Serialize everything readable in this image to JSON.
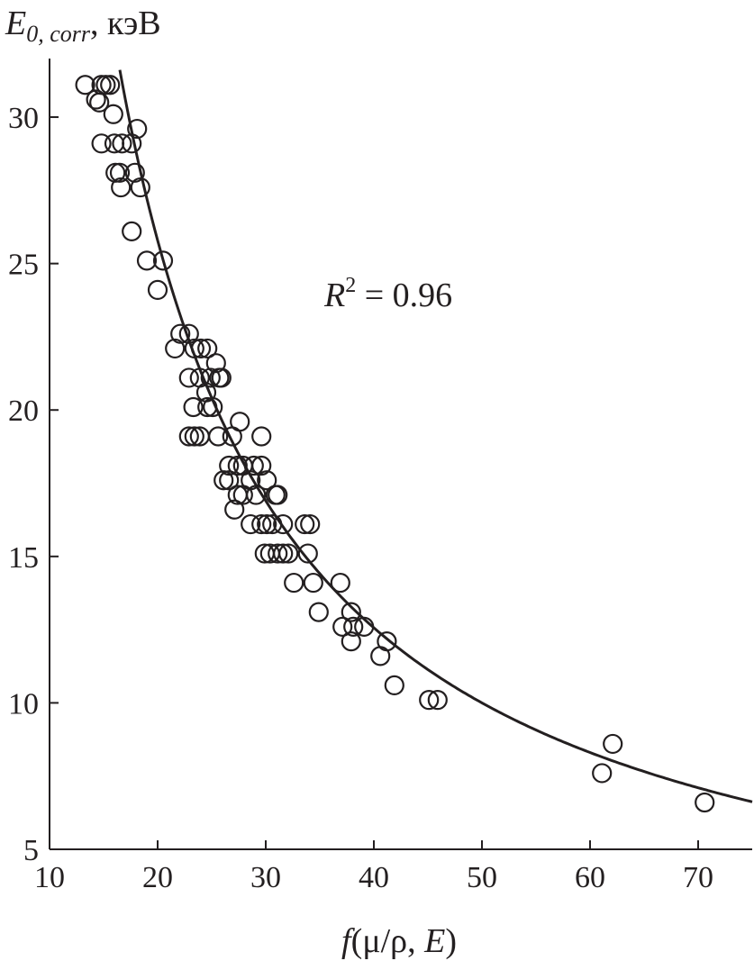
{
  "chart_data": {
    "type": "scatter",
    "ylabel": {
      "main": "E",
      "sub": "0, corr",
      "unit": ", кэВ"
    },
    "xlabel": {
      "f": "f",
      "args": "(μ/ρ, ",
      "E": "E",
      "close": ")"
    },
    "annotation": {
      "R": "R",
      "sup": "2",
      "text": " = 0.96"
    },
    "xlim": [
      10,
      75
    ],
    "ylim": [
      5,
      32
    ],
    "xticks": [
      10,
      20,
      30,
      40,
      50,
      60,
      70
    ],
    "yticks": [
      5,
      10,
      15,
      20,
      25,
      30
    ],
    "fit_curve": {
      "a": 490,
      "b": 1
    },
    "points": [
      [
        13.3,
        31.1
      ],
      [
        14.3,
        30.6
      ],
      [
        14.8,
        31.1
      ],
      [
        15.2,
        31.1
      ],
      [
        15.6,
        31.1
      ],
      [
        14.6,
        30.5
      ],
      [
        15.9,
        30.1
      ],
      [
        14.8,
        29.1
      ],
      [
        16.0,
        29.1
      ],
      [
        16.7,
        29.1
      ],
      [
        17.6,
        29.1
      ],
      [
        18.1,
        29.6
      ],
      [
        16.1,
        28.1
      ],
      [
        16.5,
        28.1
      ],
      [
        17.9,
        28.1
      ],
      [
        16.6,
        27.6
      ],
      [
        18.4,
        27.6
      ],
      [
        17.6,
        26.1
      ],
      [
        19.0,
        25.1
      ],
      [
        20.5,
        25.1
      ],
      [
        20.0,
        24.1
      ],
      [
        21.6,
        22.1
      ],
      [
        22.1,
        22.6
      ],
      [
        22.9,
        22.6
      ],
      [
        23.4,
        22.1
      ],
      [
        24.0,
        22.1
      ],
      [
        24.6,
        22.1
      ],
      [
        23.9,
        21.1
      ],
      [
        22.9,
        21.1
      ],
      [
        24.9,
        21.1
      ],
      [
        25.4,
        21.6
      ],
      [
        25.7,
        21.1
      ],
      [
        25.9,
        21.1
      ],
      [
        24.5,
        20.6
      ],
      [
        23.3,
        20.1
      ],
      [
        24.6,
        20.1
      ],
      [
        25.1,
        20.1
      ],
      [
        22.9,
        19.1
      ],
      [
        23.4,
        19.1
      ],
      [
        23.9,
        19.1
      ],
      [
        25.6,
        19.1
      ],
      [
        26.9,
        19.1
      ],
      [
        27.6,
        19.6
      ],
      [
        29.6,
        19.1
      ],
      [
        26.6,
        18.1
      ],
      [
        27.4,
        18.1
      ],
      [
        27.9,
        18.1
      ],
      [
        28.9,
        18.1
      ],
      [
        29.6,
        18.1
      ],
      [
        26.1,
        17.6
      ],
      [
        26.6,
        17.6
      ],
      [
        28.6,
        17.6
      ],
      [
        30.1,
        17.6
      ],
      [
        27.4,
        17.1
      ],
      [
        27.9,
        17.1
      ],
      [
        29.1,
        17.1
      ],
      [
        30.9,
        17.1
      ],
      [
        31.1,
        17.1
      ],
      [
        27.1,
        16.6
      ],
      [
        28.6,
        16.1
      ],
      [
        29.6,
        16.1
      ],
      [
        30.1,
        16.1
      ],
      [
        30.6,
        16.1
      ],
      [
        31.6,
        16.1
      ],
      [
        33.6,
        16.1
      ],
      [
        34.1,
        16.1
      ],
      [
        29.9,
        15.1
      ],
      [
        30.4,
        15.1
      ],
      [
        31.1,
        15.1
      ],
      [
        31.6,
        15.1
      ],
      [
        32.1,
        15.1
      ],
      [
        33.9,
        15.1
      ],
      [
        32.6,
        14.1
      ],
      [
        34.4,
        14.1
      ],
      [
        36.9,
        14.1
      ],
      [
        34.9,
        13.1
      ],
      [
        37.9,
        13.1
      ],
      [
        37.1,
        12.6
      ],
      [
        38.1,
        12.6
      ],
      [
        39.1,
        12.6
      ],
      [
        37.9,
        12.1
      ],
      [
        41.2,
        12.1
      ],
      [
        40.6,
        11.6
      ],
      [
        41.9,
        10.6
      ],
      [
        45.1,
        10.1
      ],
      [
        45.9,
        10.1
      ],
      [
        61.1,
        7.6
      ],
      [
        62.1,
        8.6
      ],
      [
        70.6,
        6.6
      ]
    ]
  }
}
